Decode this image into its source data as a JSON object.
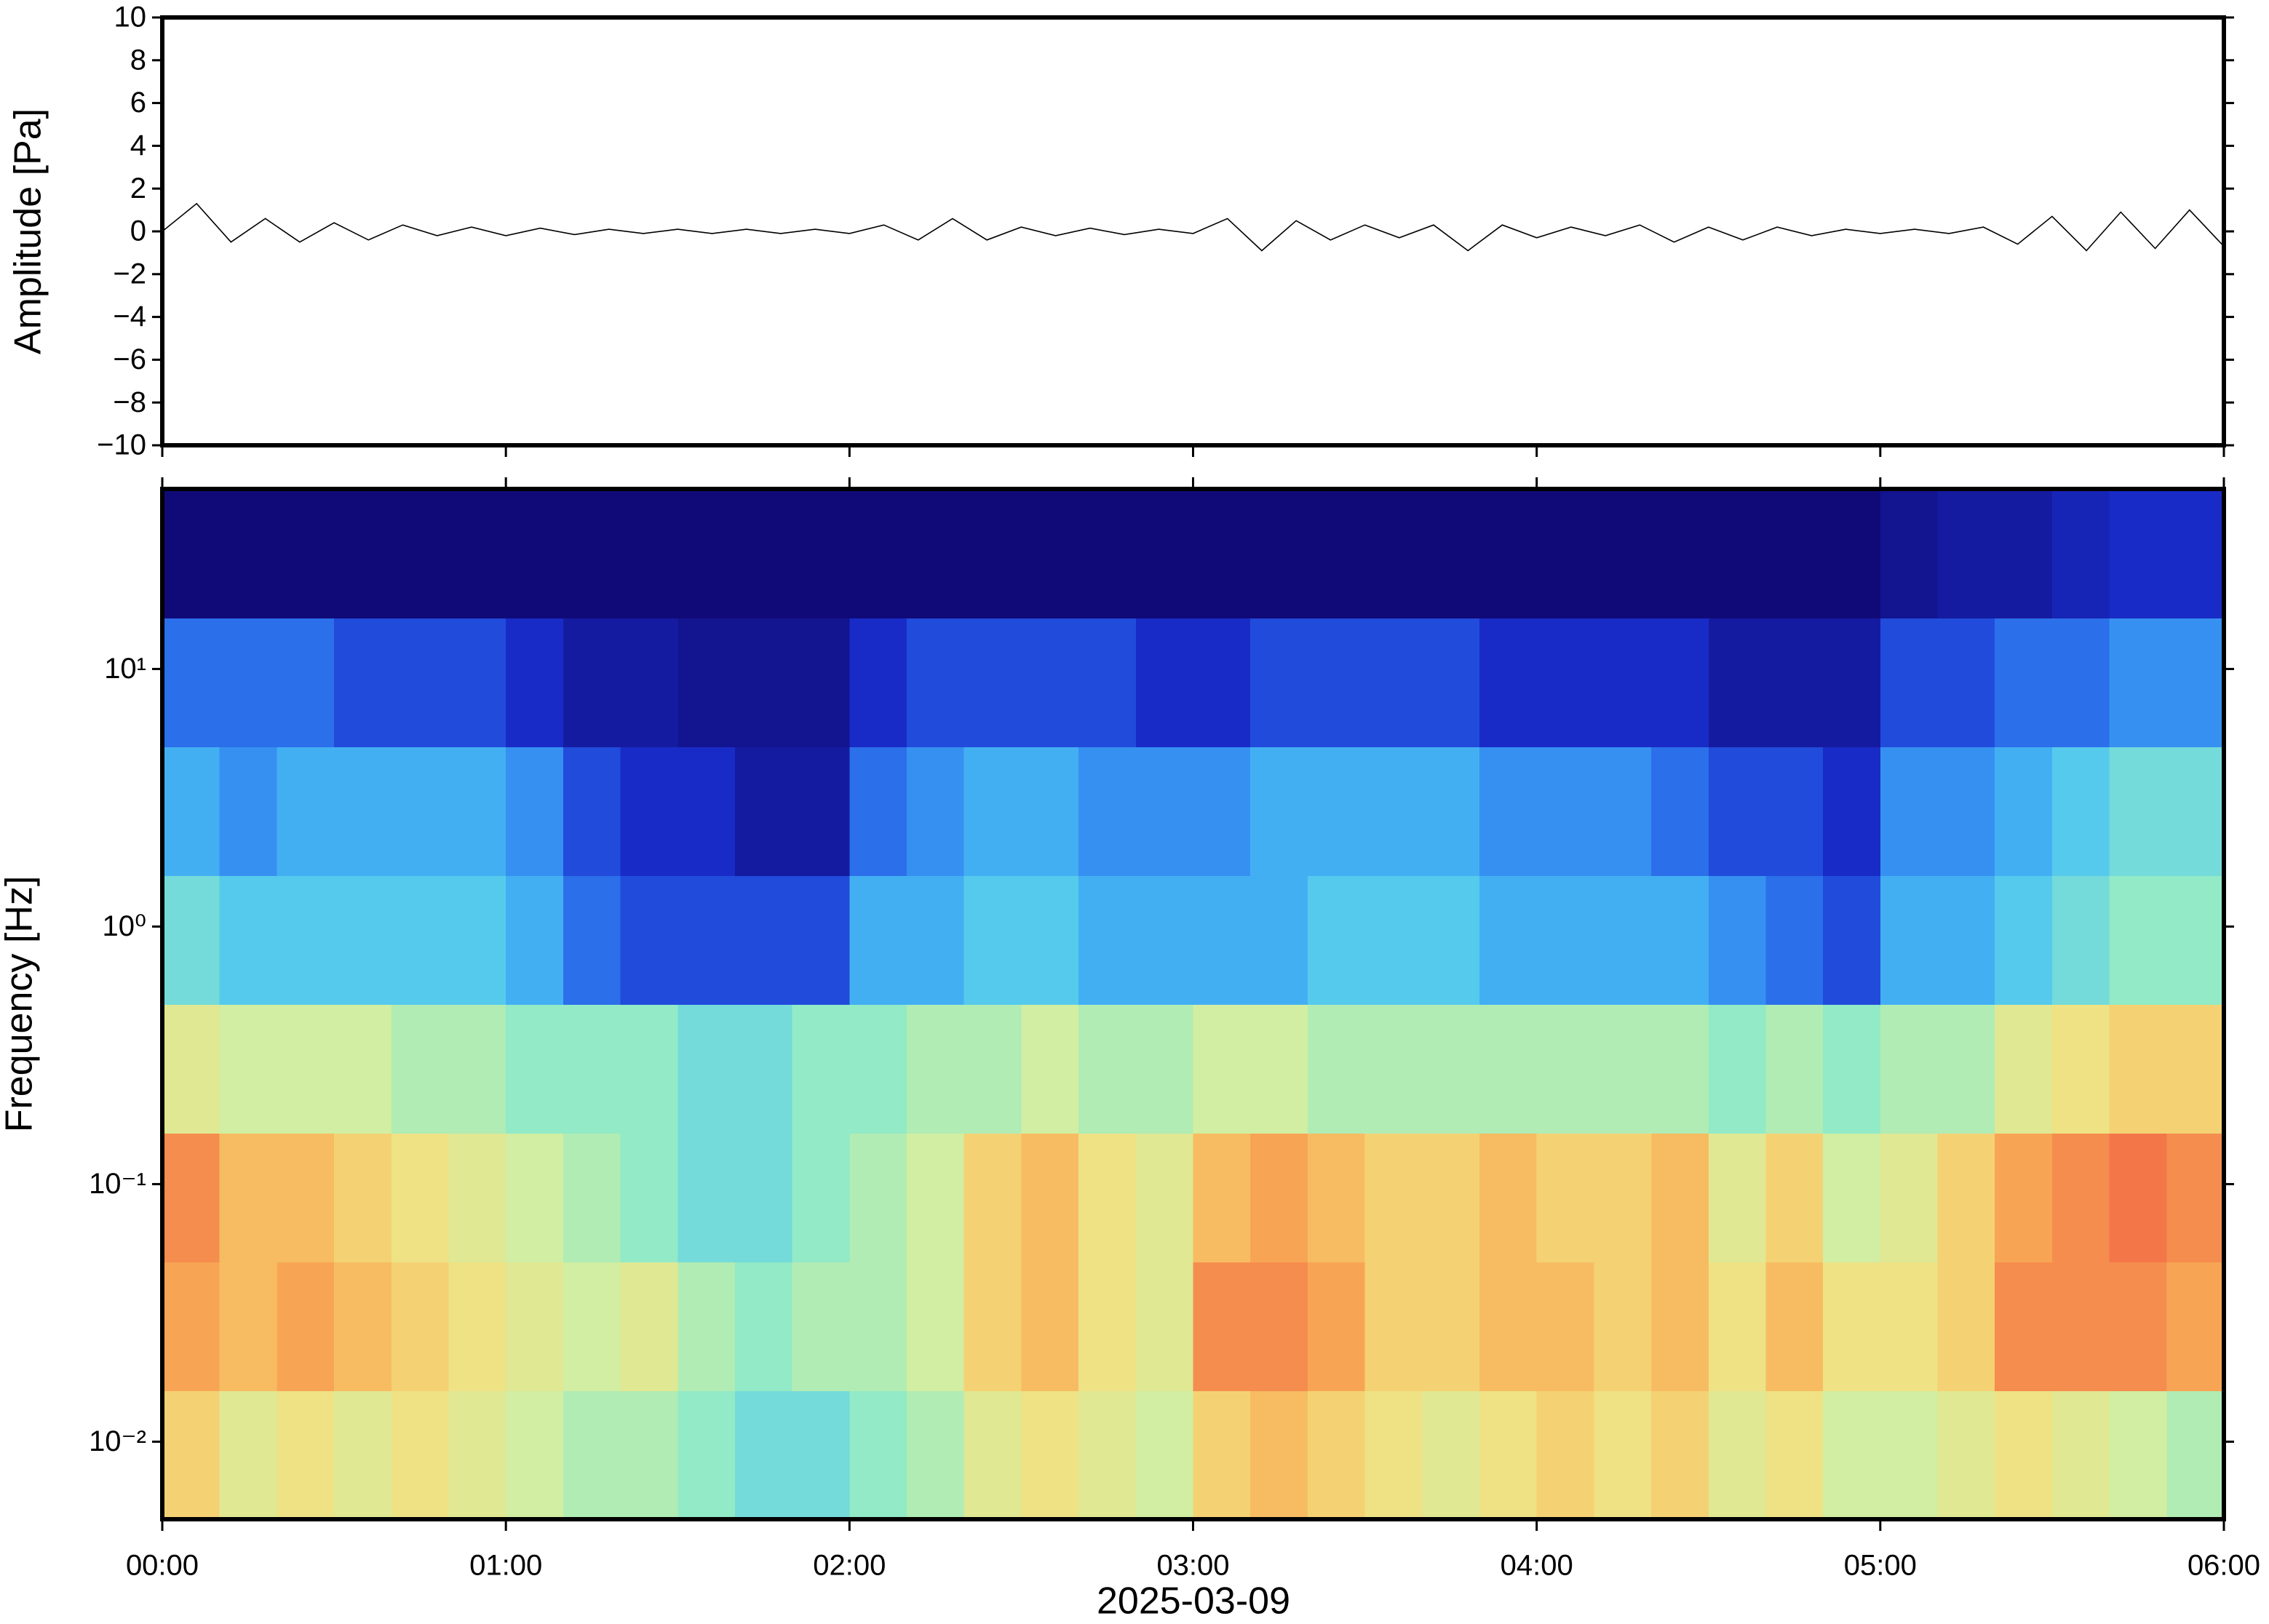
{
  "chart_data": [
    {
      "type": "line",
      "ylabel": "Amplitude [Pa]",
      "xlim": [
        0,
        360
      ],
      "ylim": [
        -10,
        10
      ],
      "yticks": [
        {
          "value": -10,
          "label": "−10"
        },
        {
          "value": -8,
          "label": "−8"
        },
        {
          "value": -6,
          "label": "−6"
        },
        {
          "value": -4,
          "label": "−4"
        },
        {
          "value": -2,
          "label": "−2"
        },
        0,
        2,
        4,
        6,
        8,
        10
      ],
      "xticks": [
        0,
        60,
        120,
        180,
        240,
        300,
        360
      ],
      "color": "#000000",
      "x": [
        0,
        6,
        12,
        18,
        24,
        30,
        36,
        42,
        48,
        54,
        60,
        66,
        72,
        78,
        84,
        90,
        96,
        102,
        108,
        114,
        120,
        126,
        132,
        138,
        144,
        150,
        156,
        162,
        168,
        174,
        180,
        186,
        192,
        198,
        204,
        210,
        216,
        222,
        228,
        234,
        240,
        246,
        252,
        258,
        264,
        270,
        276,
        282,
        288,
        294,
        300,
        306,
        312,
        318,
        324,
        330,
        336,
        342,
        348,
        354,
        360
      ],
      "values": [
        0,
        1.3,
        -0.5,
        0.6,
        -0.5,
        0.4,
        -0.4,
        0.3,
        -0.2,
        0.2,
        -0.2,
        0.15,
        -0.15,
        0.1,
        -0.1,
        0.1,
        -0.1,
        0.1,
        -0.1,
        0.1,
        -0.1,
        0.3,
        -0.4,
        0.6,
        -0.4,
        0.2,
        -0.2,
        0.15,
        -0.15,
        0.1,
        -0.1,
        0.6,
        -0.9,
        0.5,
        -0.4,
        0.3,
        -0.3,
        0.3,
        -0.9,
        0.3,
        -0.3,
        0.2,
        -0.2,
        0.3,
        -0.5,
        0.2,
        -0.4,
        0.2,
        -0.2,
        0.1,
        -0.1,
        0.1,
        -0.1,
        0.2,
        -0.6,
        0.7,
        -0.9,
        0.9,
        -0.8,
        1.0,
        -0.7
      ]
    },
    {
      "type": "heatmap",
      "ylabel": "Frequency [Hz]",
      "xlabel": "2025-03-09",
      "xlim": [
        0,
        360
      ],
      "xticks": [
        {
          "value": 0,
          "label": "00:00"
        },
        {
          "value": 60,
          "label": "01:00"
        },
        {
          "value": 120,
          "label": "02:00"
        },
        {
          "value": 180,
          "label": "03:00"
        },
        {
          "value": 240,
          "label": "04:00"
        },
        {
          "value": 300,
          "label": "05:00"
        },
        {
          "value": 360,
          "label": "06:00"
        }
      ],
      "ylim": [
        0.005,
        50
      ],
      "yscale": "log",
      "yticks": [
        {
          "value": 0.01,
          "label": "10⁻²"
        },
        {
          "value": 0.1,
          "label": "10⁻¹"
        },
        {
          "value": 1,
          "label": "10⁰"
        },
        {
          "value": 10,
          "label": "10¹"
        }
      ],
      "clim": [
        0,
        10
      ],
      "colormap": [
        "#100a78",
        "#1a2fd0",
        "#2f7ff0",
        "#4cc4f4",
        "#8eeac8",
        "#d4eea0",
        "#f2e080",
        "#f8b058",
        "#f47a48",
        "#ec5050"
      ],
      "x_edges": [
        0,
        10,
        20,
        30,
        40,
        50,
        60,
        70,
        80,
        90,
        100,
        110,
        120,
        130,
        140,
        150,
        160,
        170,
        180,
        190,
        200,
        210,
        220,
        230,
        240,
        250,
        260,
        270,
        280,
        290,
        300,
        310,
        320,
        330,
        340,
        350,
        360
      ],
      "y_edges": [
        0.005,
        0.0158,
        0.05,
        0.158,
        0.5,
        1.58,
        5,
        15.8,
        50
      ],
      "z": [
        [
          7,
          6,
          6.5,
          6,
          6.5,
          6,
          5.5,
          5,
          5,
          4.5,
          4,
          4,
          4.5,
          5,
          6,
          6.5,
          6,
          5.5,
          7,
          7.5,
          7,
          6.5,
          6,
          6.5,
          7,
          6.5,
          7,
          6,
          6.5,
          5.5,
          5.5,
          6,
          6.5,
          6,
          5.5,
          5
        ],
        [
          8,
          7.5,
          8,
          7.5,
          7,
          6.5,
          6,
          5.5,
          6,
          5,
          4.5,
          5,
          5,
          5.5,
          7,
          7.5,
          6.5,
          6,
          8.5,
          8.5,
          8,
          7,
          7,
          7.5,
          7.5,
          7,
          7.5,
          6.5,
          7.5,
          6.5,
          6.5,
          7,
          8.5,
          8.5,
          8.5,
          8
        ],
        [
          8.5,
          7.5,
          7.5,
          7,
          6.5,
          6,
          5.5,
          5,
          4.5,
          4,
          4,
          4.5,
          5,
          5.5,
          7,
          7.5,
          6.5,
          6,
          7.5,
          8,
          7.5,
          7,
          7,
          7.5,
          7,
          7,
          7.5,
          6,
          7,
          5.5,
          6,
          7,
          8,
          8.5,
          9,
          8.5
        ],
        [
          6,
          5.5,
          5.5,
          5.5,
          5,
          5,
          4.5,
          4.5,
          4.5,
          4,
          4,
          4.5,
          4.5,
          5,
          5,
          5.5,
          5,
          5,
          5.5,
          5.5,
          5,
          5,
          5,
          5,
          5,
          5,
          5,
          4.5,
          5,
          4.5,
          5,
          5,
          6,
          6.5,
          7,
          7
        ],
        [
          4,
          3.5,
          3.5,
          3.5,
          3.5,
          3.5,
          3,
          2,
          1.5,
          1.5,
          1.5,
          1.5,
          3,
          3,
          3.5,
          3.5,
          3,
          3,
          3,
          3,
          3.5,
          3.5,
          3.5,
          3,
          3,
          3,
          3,
          2.5,
          2,
          1.5,
          3,
          3,
          3.5,
          4,
          4.5,
          4.5
        ],
        [
          3,
          2.5,
          3,
          3,
          3,
          3,
          2.5,
          1.5,
          1,
          1,
          0.5,
          0.5,
          2,
          2.5,
          3,
          3,
          2.5,
          2.5,
          2.5,
          3,
          3,
          3,
          3,
          2.5,
          2.5,
          2.5,
          2,
          1.5,
          1.5,
          1,
          2.5,
          2.5,
          3,
          3.5,
          4,
          4
        ],
        [
          2,
          2,
          2,
          1.5,
          1.5,
          1.5,
          1,
          0.5,
          0.5,
          0.3,
          0.3,
          0.3,
          1,
          1.5,
          1.5,
          1.5,
          1.5,
          1,
          1,
          1.5,
          1.5,
          1.5,
          1.5,
          1,
          1,
          1,
          1,
          0.5,
          0.5,
          0.5,
          1.5,
          1.5,
          2,
          2,
          2.5,
          2.5
        ],
        [
          0,
          0,
          0,
          0,
          0,
          0,
          0,
          0,
          0,
          0,
          0,
          0,
          0,
          0,
          0,
          0,
          0,
          0,
          0,
          0,
          0,
          0,
          0,
          0,
          0,
          0,
          0,
          0,
          0,
          0,
          0.3,
          0.5,
          0.5,
          0.8,
          1,
          1
        ]
      ]
    }
  ]
}
